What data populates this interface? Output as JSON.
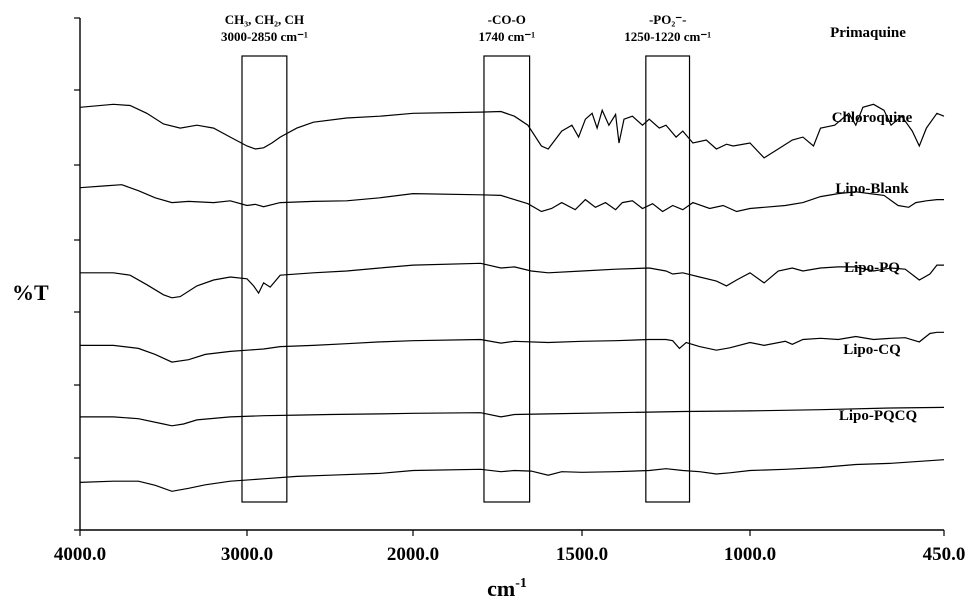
{
  "chart_data": {
    "type": "line",
    "xlabel": "cm",
    "xlabel_sup": "-1",
    "ylabel": "%T",
    "xlim": [
      4000,
      450
    ],
    "x_ticks": [
      {
        "value": 4000,
        "label": "4000.0"
      },
      {
        "value": 3000,
        "label": "3000.0"
      },
      {
        "value": 2000,
        "label": "2000.0"
      },
      {
        "value": 1500,
        "label": "1500.0"
      },
      {
        "value": 1000,
        "label": "1000.0"
      },
      {
        "value": 450,
        "label": "450.0"
      }
    ],
    "y_ticks": [
      0,
      1,
      2,
      3,
      4,
      5,
      6,
      7,
      8
    ],
    "bands": [
      {
        "x_from": 3030,
        "x_to": 2760,
        "line1": "CH₃, CH₂, CH",
        "line2": "3000-2850 cm⁻¹"
      },
      {
        "x_from": 1790,
        "x_to": 1655,
        "line1": "-CO-O",
        "line2": "1740 cm⁻¹"
      },
      {
        "x_from": 1310,
        "x_to": 1180,
        "line1": "-PO₂⁻-",
        "line2": "1250-1220 cm⁻¹"
      }
    ],
    "series": [
      {
        "name": "Primaquine",
        "offset": 6.9,
        "scale": 1,
        "points": [
          [
            4000,
            6.9
          ],
          [
            3800,
            6.95
          ],
          [
            3700,
            6.93
          ],
          [
            3600,
            6.8
          ],
          [
            3500,
            6.62
          ],
          [
            3400,
            6.55
          ],
          [
            3300,
            6.6
          ],
          [
            3200,
            6.55
          ],
          [
            3100,
            6.4
          ],
          [
            3000,
            6.25
          ],
          [
            2950,
            6.2
          ],
          [
            2900,
            6.22
          ],
          [
            2850,
            6.3
          ],
          [
            2800,
            6.4
          ],
          [
            2700,
            6.55
          ],
          [
            2600,
            6.65
          ],
          [
            2400,
            6.72
          ],
          [
            2200,
            6.75
          ],
          [
            2000,
            6.8
          ],
          [
            1800,
            6.82
          ],
          [
            1740,
            6.83
          ],
          [
            1700,
            6.75
          ],
          [
            1660,
            6.6
          ],
          [
            1620,
            6.25
          ],
          [
            1600,
            6.2
          ],
          [
            1580,
            6.35
          ],
          [
            1560,
            6.5
          ],
          [
            1530,
            6.6
          ],
          [
            1510,
            6.4
          ],
          [
            1490,
            6.7
          ],
          [
            1470,
            6.8
          ],
          [
            1455,
            6.55
          ],
          [
            1440,
            6.85
          ],
          [
            1420,
            6.6
          ],
          [
            1400,
            6.78
          ],
          [
            1390,
            6.3
          ],
          [
            1375,
            6.7
          ],
          [
            1350,
            6.75
          ],
          [
            1320,
            6.6
          ],
          [
            1300,
            6.7
          ],
          [
            1270,
            6.55
          ],
          [
            1250,
            6.6
          ],
          [
            1220,
            6.4
          ],
          [
            1200,
            6.5
          ],
          [
            1170,
            6.3
          ],
          [
            1130,
            6.35
          ],
          [
            1100,
            6.2
          ],
          [
            1070,
            6.28
          ],
          [
            1050,
            6.25
          ],
          [
            1000,
            6.3
          ],
          [
            960,
            6.05
          ],
          [
            920,
            6.2
          ],
          [
            880,
            6.35
          ],
          [
            850,
            6.4
          ],
          [
            820,
            6.25
          ],
          [
            800,
            6.55
          ],
          [
            760,
            6.6
          ],
          [
            720,
            6.8
          ],
          [
            700,
            6.6
          ],
          [
            680,
            6.9
          ],
          [
            650,
            6.95
          ],
          [
            620,
            6.85
          ],
          [
            600,
            6.6
          ],
          [
            570,
            6.75
          ],
          [
            540,
            6.5
          ],
          [
            520,
            6.25
          ],
          [
            500,
            6.55
          ],
          [
            470,
            6.8
          ],
          [
            450,
            6.75
          ]
        ]
      },
      {
        "name": "Chloroquine",
        "offset": 5.5,
        "scale": 1,
        "points": [
          [
            4000,
            5.55
          ],
          [
            3850,
            5.58
          ],
          [
            3750,
            5.6
          ],
          [
            3650,
            5.5
          ],
          [
            3550,
            5.38
          ],
          [
            3450,
            5.3
          ],
          [
            3350,
            5.32
          ],
          [
            3200,
            5.3
          ],
          [
            3100,
            5.33
          ],
          [
            3000,
            5.25
          ],
          [
            2950,
            5.27
          ],
          [
            2900,
            5.23
          ],
          [
            2800,
            5.3
          ],
          [
            2600,
            5.32
          ],
          [
            2400,
            5.33
          ],
          [
            2200,
            5.38
          ],
          [
            2000,
            5.45
          ],
          [
            1800,
            5.43
          ],
          [
            1740,
            5.42
          ],
          [
            1700,
            5.35
          ],
          [
            1660,
            5.28
          ],
          [
            1620,
            5.15
          ],
          [
            1590,
            5.2
          ],
          [
            1560,
            5.3
          ],
          [
            1520,
            5.18
          ],
          [
            1490,
            5.35
          ],
          [
            1460,
            5.22
          ],
          [
            1430,
            5.3
          ],
          [
            1400,
            5.18
          ],
          [
            1380,
            5.3
          ],
          [
            1350,
            5.33
          ],
          [
            1320,
            5.2
          ],
          [
            1290,
            5.28
          ],
          [
            1260,
            5.15
          ],
          [
            1230,
            5.25
          ],
          [
            1200,
            5.18
          ],
          [
            1170,
            5.3
          ],
          [
            1120,
            5.2
          ],
          [
            1080,
            5.25
          ],
          [
            1040,
            5.15
          ],
          [
            1000,
            5.2
          ],
          [
            960,
            5.22
          ],
          [
            900,
            5.25
          ],
          [
            850,
            5.3
          ],
          [
            800,
            5.4
          ],
          [
            750,
            5.45
          ],
          [
            700,
            5.48
          ],
          [
            660,
            5.45
          ],
          [
            620,
            5.42
          ],
          [
            580,
            5.25
          ],
          [
            550,
            5.22
          ],
          [
            530,
            5.3
          ],
          [
            500,
            5.33
          ],
          [
            470,
            5.35
          ],
          [
            450,
            5.35
          ]
        ]
      },
      {
        "name": "Lipo-Blank",
        "offset": 4.1,
        "scale": 1,
        "points": [
          [
            4000,
            4.12
          ],
          [
            3800,
            4.12
          ],
          [
            3700,
            4.08
          ],
          [
            3600,
            3.92
          ],
          [
            3500,
            3.75
          ],
          [
            3450,
            3.7
          ],
          [
            3400,
            3.72
          ],
          [
            3300,
            3.9
          ],
          [
            3200,
            4.0
          ],
          [
            3100,
            4.05
          ],
          [
            3000,
            4.02
          ],
          [
            2960,
            3.9
          ],
          [
            2930,
            3.78
          ],
          [
            2900,
            3.95
          ],
          [
            2860,
            3.88
          ],
          [
            2800,
            4.08
          ],
          [
            2600,
            4.12
          ],
          [
            2400,
            4.15
          ],
          [
            2200,
            4.2
          ],
          [
            2000,
            4.25
          ],
          [
            1800,
            4.28
          ],
          [
            1740,
            4.2
          ],
          [
            1700,
            4.22
          ],
          [
            1650,
            4.15
          ],
          [
            1600,
            4.12
          ],
          [
            1500,
            4.15
          ],
          [
            1400,
            4.18
          ],
          [
            1300,
            4.2
          ],
          [
            1250,
            4.15
          ],
          [
            1230,
            4.1
          ],
          [
            1200,
            4.12
          ],
          [
            1150,
            4.05
          ],
          [
            1100,
            3.98
          ],
          [
            1070,
            3.9
          ],
          [
            1040,
            4.0
          ],
          [
            1000,
            4.12
          ],
          [
            960,
            3.95
          ],
          [
            920,
            4.15
          ],
          [
            880,
            4.2
          ],
          [
            850,
            4.15
          ],
          [
            800,
            4.2
          ],
          [
            750,
            4.22
          ],
          [
            700,
            4.22
          ],
          [
            650,
            4.15
          ],
          [
            600,
            4.2
          ],
          [
            560,
            4.18
          ],
          [
            520,
            4.0
          ],
          [
            490,
            4.1
          ],
          [
            470,
            4.25
          ],
          [
            450,
            4.25
          ]
        ]
      },
      {
        "name": "Lipo-PQ",
        "offset": 2.9,
        "scale": 1,
        "points": [
          [
            4000,
            2.9
          ],
          [
            3800,
            2.9
          ],
          [
            3650,
            2.85
          ],
          [
            3550,
            2.75
          ],
          [
            3450,
            2.62
          ],
          [
            3350,
            2.66
          ],
          [
            3250,
            2.75
          ],
          [
            3100,
            2.8
          ],
          [
            3000,
            2.82
          ],
          [
            2900,
            2.84
          ],
          [
            2800,
            2.88
          ],
          [
            2600,
            2.9
          ],
          [
            2400,
            2.93
          ],
          [
            2200,
            2.96
          ],
          [
            2000,
            2.98
          ],
          [
            1800,
            3.0
          ],
          [
            1740,
            2.94
          ],
          [
            1700,
            2.97
          ],
          [
            1600,
            2.95
          ],
          [
            1500,
            2.97
          ],
          [
            1400,
            2.98
          ],
          [
            1300,
            3.0
          ],
          [
            1250,
            3.0
          ],
          [
            1230,
            2.98
          ],
          [
            1210,
            2.85
          ],
          [
            1190,
            2.95
          ],
          [
            1150,
            2.88
          ],
          [
            1100,
            2.82
          ],
          [
            1060,
            2.86
          ],
          [
            1000,
            2.95
          ],
          [
            960,
            2.9
          ],
          [
            900,
            2.97
          ],
          [
            880,
            2.92
          ],
          [
            850,
            3.0
          ],
          [
            800,
            3.02
          ],
          [
            750,
            3.0
          ],
          [
            700,
            3.05
          ],
          [
            650,
            3.0
          ],
          [
            600,
            3.02
          ],
          [
            560,
            3.03
          ],
          [
            520,
            2.96
          ],
          [
            490,
            3.1
          ],
          [
            470,
            3.12
          ],
          [
            450,
            3.12
          ]
        ]
      },
      {
        "name": "Lipo-CQ",
        "offset": 1.7,
        "scale": 1,
        "points": [
          [
            4000,
            1.7
          ],
          [
            3800,
            1.7
          ],
          [
            3650,
            1.67
          ],
          [
            3500,
            1.58
          ],
          [
            3450,
            1.55
          ],
          [
            3380,
            1.58
          ],
          [
            3300,
            1.65
          ],
          [
            3100,
            1.7
          ],
          [
            2900,
            1.72
          ],
          [
            2700,
            1.73
          ],
          [
            2500,
            1.74
          ],
          [
            2200,
            1.75
          ],
          [
            2000,
            1.76
          ],
          [
            1800,
            1.77
          ],
          [
            1740,
            1.7
          ],
          [
            1700,
            1.74
          ],
          [
            1600,
            1.75
          ],
          [
            1400,
            1.77
          ],
          [
            1200,
            1.79
          ],
          [
            1000,
            1.8
          ],
          [
            800,
            1.82
          ],
          [
            600,
            1.85
          ],
          [
            450,
            1.86
          ]
        ]
      },
      {
        "name": "Lipo-PQCQ",
        "offset": 0.6,
        "scale": 1,
        "points": [
          [
            4000,
            0.6
          ],
          [
            3800,
            0.62
          ],
          [
            3650,
            0.62
          ],
          [
            3550,
            0.55
          ],
          [
            3450,
            0.45
          ],
          [
            3350,
            0.5
          ],
          [
            3250,
            0.56
          ],
          [
            3100,
            0.62
          ],
          [
            2900,
            0.66
          ],
          [
            2700,
            0.7
          ],
          [
            2500,
            0.72
          ],
          [
            2200,
            0.75
          ],
          [
            2000,
            0.8
          ],
          [
            1800,
            0.82
          ],
          [
            1740,
            0.78
          ],
          [
            1700,
            0.8
          ],
          [
            1650,
            0.79
          ],
          [
            1600,
            0.72
          ],
          [
            1560,
            0.78
          ],
          [
            1500,
            0.77
          ],
          [
            1400,
            0.78
          ],
          [
            1300,
            0.8
          ],
          [
            1250,
            0.83
          ],
          [
            1200,
            0.8
          ],
          [
            1150,
            0.78
          ],
          [
            1100,
            0.74
          ],
          [
            1060,
            0.76
          ],
          [
            1000,
            0.8
          ],
          [
            900,
            0.82
          ],
          [
            800,
            0.85
          ],
          [
            700,
            0.9
          ],
          [
            600,
            0.92
          ],
          [
            450,
            0.98
          ]
        ]
      }
    ],
    "y_range": [
      -0.2,
      8.4
    ]
  }
}
